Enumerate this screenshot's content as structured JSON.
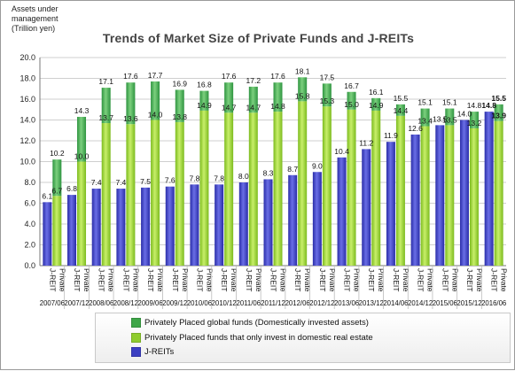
{
  "chart_data": {
    "type": "bar",
    "title": "Trends of Market Size of Private Funds and J-REITs",
    "ylabel": "Assets under management (Trillion yen)",
    "ylim": [
      0,
      20
    ],
    "yticks": [
      "0.0",
      "2.0",
      "4.0",
      "6.0",
      "8.0",
      "10.0",
      "12.0",
      "14.0",
      "16.0",
      "18.0",
      "20.0"
    ],
    "periods": [
      "2007/06",
      "2007/12",
      "2008/06",
      "2008/12",
      "2009/06",
      "2009/12",
      "2010/06",
      "2010/12",
      "2011/06",
      "2011/12",
      "2012/06",
      "2012/12",
      "2013/06",
      "2013/12",
      "2014/06",
      "2014/12",
      "2015/06",
      "2015/12",
      "2016/06"
    ],
    "bar_labels": {
      "jreit": "J-REIT",
      "private": "Private"
    },
    "series": [
      {
        "name": "J-REITs",
        "key": "jreit",
        "color": "#3b3fc2",
        "values": [
          6.1,
          6.8,
          7.4,
          7.4,
          7.5,
          7.6,
          7.8,
          7.8,
          8.0,
          8.3,
          8.7,
          9.0,
          10.4,
          11.2,
          11.9,
          12.6,
          13.5,
          14.0,
          14.8
        ]
      },
      {
        "name": "Privately Placed funds that only invest in domestic real estate",
        "key": "domestic",
        "color": "#8fcc2e",
        "values": [
          6.7,
          10.0,
          13.7,
          13.6,
          14.0,
          13.8,
          14.9,
          14.7,
          14.7,
          14.8,
          15.8,
          15.3,
          15.0,
          14.9,
          14.4,
          13.4,
          13.5,
          13.2,
          13.9
        ]
      },
      {
        "name": "Privately Placed global funds (Domestically invested assets)",
        "key": "global",
        "color": "#3ea648",
        "values": [
          10.2,
          14.3,
          17.1,
          17.6,
          17.7,
          16.9,
          16.8,
          17.6,
          17.2,
          17.6,
          18.1,
          17.5,
          16.7,
          16.1,
          15.5,
          15.1,
          15.1,
          14.8,
          15.5
        ]
      }
    ],
    "legend": [
      {
        "label": "Privately Placed global funds (Domestically invested assets)",
        "color": "#3ea648"
      },
      {
        "label": "Privately Placed funds that only invest in domestic real estate",
        "color": "#8fcc2e"
      },
      {
        "label": "J-REITs",
        "color": "#3b3fc2"
      }
    ],
    "ylabel_lines": [
      "Assets under",
      "management",
      "(Trillion yen)"
    ]
  }
}
